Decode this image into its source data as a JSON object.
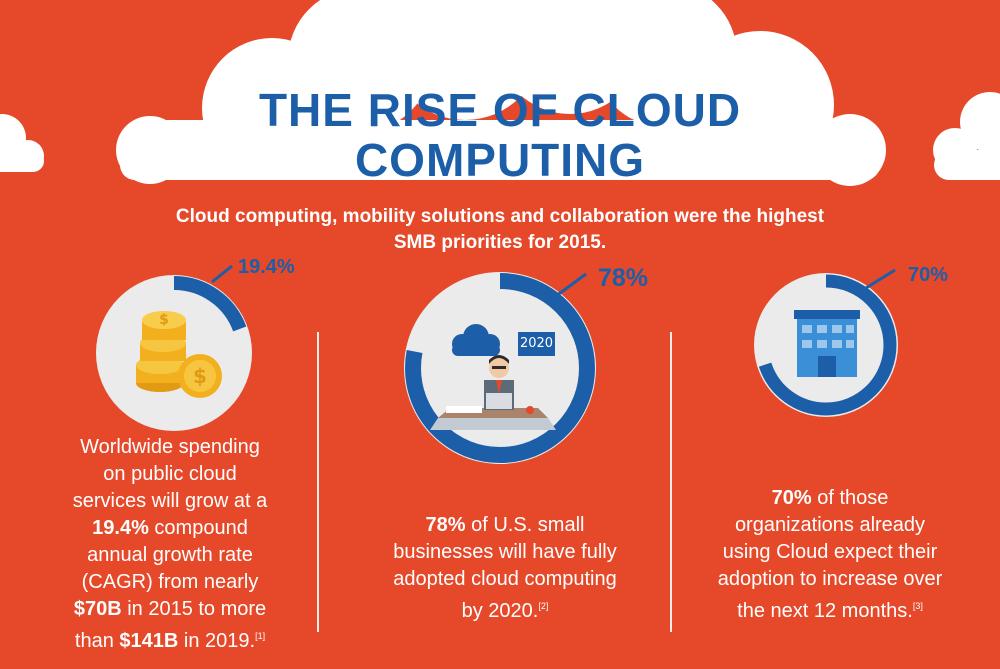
{
  "header": {
    "title_line1": "THE RISE OF CLOUD",
    "title_line2": "COMPUTING"
  },
  "subtitle": {
    "line1": "Cloud computing, mobility solutions and collaboration were the highest",
    "line2": "SMB priorities for 2015."
  },
  "colors": {
    "background": "#e5492a",
    "accent_blue": "#1c5ea8",
    "circle_white": "#ebebeb",
    "coin_gold": "#f3b01e"
  },
  "stats": [
    {
      "percent_label": "19.4%",
      "fraction": 0.194,
      "icon": "gold-coins-icon",
      "text": {
        "l1": "Worldwide spending",
        "l2": "on public cloud",
        "l3": "services will grow at a",
        "l4_bold": "19.4%",
        "l4_rest": " compound",
        "l5": "annual growth rate",
        "l6": "(CAGR) from nearly",
        "l7_bold": "$70B",
        "l7_rest": " in 2015 to more",
        "l8_pre": "than ",
        "l8_bold": "$141B",
        "l8_rest": " in 2019.",
        "ref": "[1]"
      }
    },
    {
      "percent_label": "78%",
      "fraction": 0.78,
      "icon": "businessman-at-desk-icon",
      "badge": "2020",
      "text": {
        "l1_bold": "78%",
        "l1_rest": " of U.S. small",
        "l2": "businesses will have fully",
        "l3": "adopted cloud computing",
        "l4": "by 2020.",
        "ref": "[2]"
      }
    },
    {
      "percent_label": "70%",
      "fraction": 0.7,
      "icon": "office-building-icon",
      "text": {
        "l1_bold": "70%",
        "l1_rest": " of those",
        "l2": "organizations already",
        "l3": "using Cloud expect their",
        "l4": "adoption to increase over",
        "l5": "the next 12 months.",
        "ref": "[3]"
      }
    }
  ]
}
